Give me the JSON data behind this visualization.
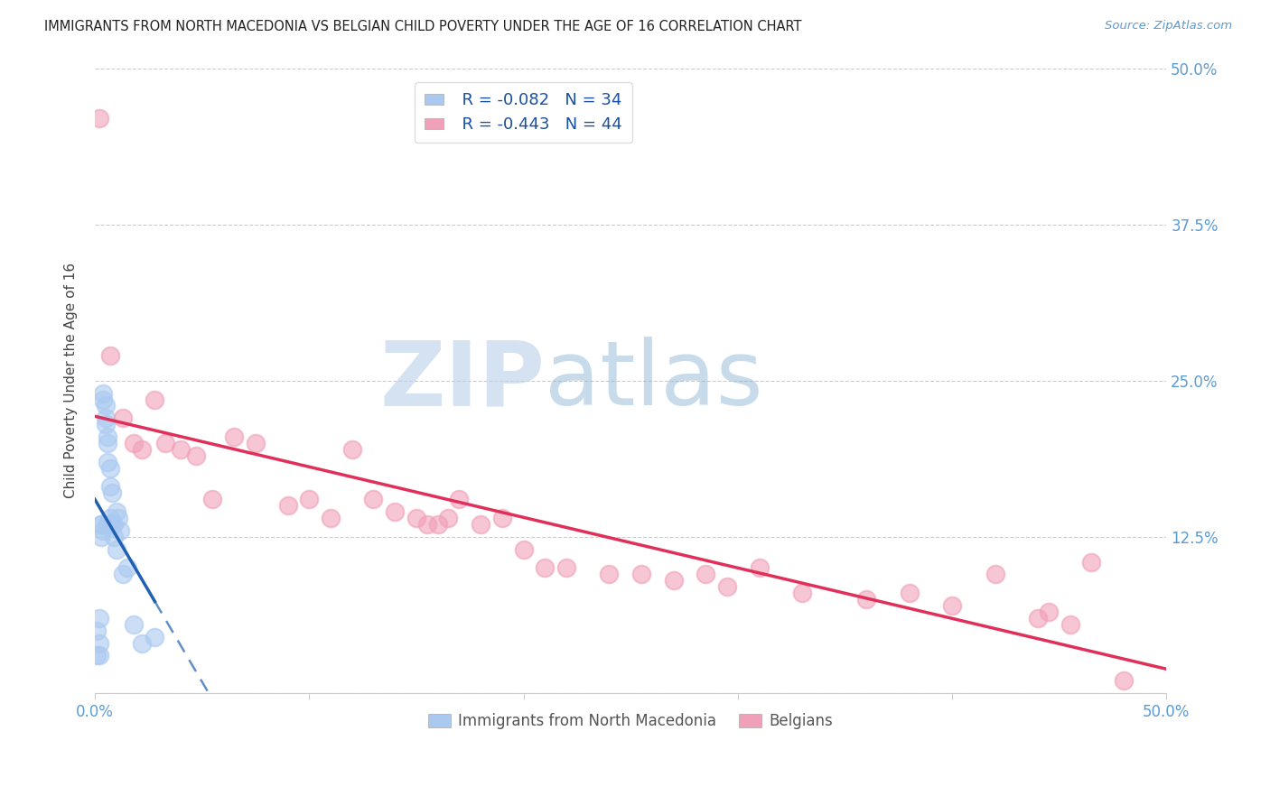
{
  "title": "IMMIGRANTS FROM NORTH MACEDONIA VS BELGIAN CHILD POVERTY UNDER THE AGE OF 16 CORRELATION CHART",
  "source": "Source: ZipAtlas.com",
  "ylabel": "Child Poverty Under the Age of 16",
  "xlim": [
    0.0,
    0.5
  ],
  "ylim": [
    0.0,
    0.5
  ],
  "xticks": [
    0.0,
    0.1,
    0.2,
    0.3,
    0.4,
    0.5
  ],
  "yticks": [
    0.0,
    0.125,
    0.25,
    0.375,
    0.5
  ],
  "series1": {
    "label": "Immigrants from North Macedonia",
    "R": -0.082,
    "N": 34,
    "color": "#aac9f0",
    "line_color": "#2060b0",
    "x": [
      0.001,
      0.001,
      0.002,
      0.002,
      0.002,
      0.003,
      0.003,
      0.003,
      0.004,
      0.004,
      0.004,
      0.005,
      0.005,
      0.005,
      0.006,
      0.006,
      0.006,
      0.006,
      0.007,
      0.007,
      0.007,
      0.008,
      0.008,
      0.009,
      0.009,
      0.01,
      0.01,
      0.011,
      0.012,
      0.013,
      0.015,
      0.018,
      0.022,
      0.028
    ],
    "y": [
      0.05,
      0.03,
      0.04,
      0.06,
      0.03,
      0.135,
      0.135,
      0.125,
      0.24,
      0.235,
      0.13,
      0.23,
      0.22,
      0.215,
      0.205,
      0.2,
      0.185,
      0.135,
      0.18,
      0.165,
      0.14,
      0.16,
      0.135,
      0.135,
      0.125,
      0.145,
      0.115,
      0.14,
      0.13,
      0.095,
      0.1,
      0.055,
      0.04,
      0.045
    ]
  },
  "series2": {
    "label": "Belgians",
    "R": -0.443,
    "N": 44,
    "color": "#f0a0b8",
    "line_color": "#e0305a",
    "x": [
      0.002,
      0.007,
      0.013,
      0.018,
      0.022,
      0.028,
      0.033,
      0.04,
      0.047,
      0.055,
      0.065,
      0.075,
      0.09,
      0.1,
      0.11,
      0.12,
      0.13,
      0.14,
      0.15,
      0.155,
      0.16,
      0.165,
      0.17,
      0.18,
      0.19,
      0.2,
      0.21,
      0.22,
      0.24,
      0.255,
      0.27,
      0.285,
      0.295,
      0.31,
      0.33,
      0.36,
      0.38,
      0.4,
      0.42,
      0.44,
      0.445,
      0.455,
      0.465,
      0.48
    ],
    "y": [
      0.46,
      0.27,
      0.22,
      0.2,
      0.195,
      0.235,
      0.2,
      0.195,
      0.19,
      0.155,
      0.205,
      0.2,
      0.15,
      0.155,
      0.14,
      0.195,
      0.155,
      0.145,
      0.14,
      0.135,
      0.135,
      0.14,
      0.155,
      0.135,
      0.14,
      0.115,
      0.1,
      0.1,
      0.095,
      0.095,
      0.09,
      0.095,
      0.085,
      0.1,
      0.08,
      0.075,
      0.08,
      0.07,
      0.095,
      0.06,
      0.065,
      0.055,
      0.105,
      0.01
    ]
  },
  "legend_color": "#1a4fa0",
  "tick_color": "#5b9bd5",
  "background_color": "#ffffff",
  "grid_color": "#cccccc",
  "watermark_zip_color": "#b8cfe8",
  "watermark_atlas_color": "#90b8d8"
}
